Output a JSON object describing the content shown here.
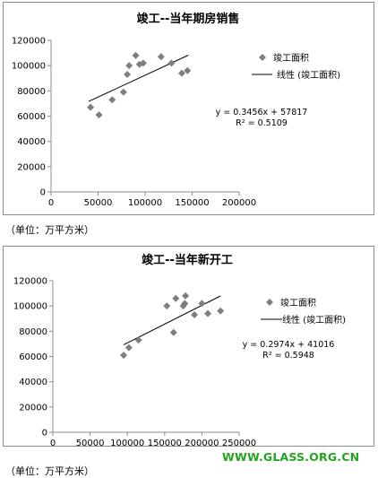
{
  "chart_data": [
    {
      "type": "scatter",
      "title": "竣工--当年期房销售",
      "xlim": [
        0,
        200000
      ],
      "ylim": [
        0,
        120000
      ],
      "x_ticks": [
        "0",
        "50000",
        "100000",
        "150000",
        "200000"
      ],
      "y_ticks": [
        "0",
        "20000",
        "40000",
        "60000",
        "80000",
        "100000",
        "120000"
      ],
      "series": [
        {
          "name": "竣工面积",
          "points": [
            [
              42000,
              67000
            ],
            [
              51000,
              61000
            ],
            [
              65000,
              73000
            ],
            [
              77000,
              79000
            ],
            [
              81000,
              93000
            ],
            [
              83000,
              100000
            ],
            [
              90000,
              108000
            ],
            [
              94000,
              101000
            ],
            [
              98000,
              102000
            ],
            [
              117000,
              107000
            ],
            [
              128000,
              102000
            ],
            [
              139000,
              94000
            ],
            [
              145000,
              96000
            ]
          ]
        }
      ],
      "trendline": {
        "name": "线性 (竣工面积)",
        "slope": 0.3456,
        "intercept": 57817,
        "x_range": [
          40000,
          146000
        ]
      },
      "equation": "y = 0.3456x + 57817",
      "r_squared": "R² = 0.5109",
      "grid": false,
      "legend_position": "right"
    },
    {
      "type": "scatter",
      "title": "竣工--当年新开工",
      "xlim": [
        0,
        250000
      ],
      "ylim": [
        0,
        120000
      ],
      "x_ticks": [
        "0",
        "50000",
        "100000",
        "150000",
        "200000",
        "250000"
      ],
      "y_ticks": [
        "0",
        "20000",
        "40000",
        "60000",
        "80000",
        "100000",
        "120000"
      ],
      "series": [
        {
          "name": "竣工面积",
          "points": [
            [
              95000,
              61000
            ],
            [
              102000,
              67000
            ],
            [
              115000,
              73000
            ],
            [
              153000,
              100000
            ],
            [
              162000,
              79000
            ],
            [
              165000,
              106000
            ],
            [
              175000,
              100000
            ],
            [
              177000,
              102000
            ],
            [
              178000,
              108000
            ],
            [
              190000,
              93000
            ],
            [
              200000,
              102000
            ],
            [
              208000,
              94000
            ],
            [
              225000,
              96000
            ]
          ]
        }
      ],
      "trendline": {
        "name": "线性 (竣工面积)",
        "slope": 0.2974,
        "intercept": 41016,
        "x_range": [
          95000,
          225000
        ]
      },
      "equation": "y = 0.2974x + 41016",
      "r_squared": "R² = 0.5948",
      "grid": false,
      "legend_position": "right"
    }
  ],
  "notes": {
    "unit_1": "（单位：万平方米）",
    "unit_2": "（单位：万平方米）"
  },
  "watermark": "WWW.GLASS.ORG.CN",
  "colors": {
    "marker": "#7f7f7f",
    "trendline": "#000000",
    "axis": "#8c8c8c",
    "watermark": "#22a51e"
  }
}
